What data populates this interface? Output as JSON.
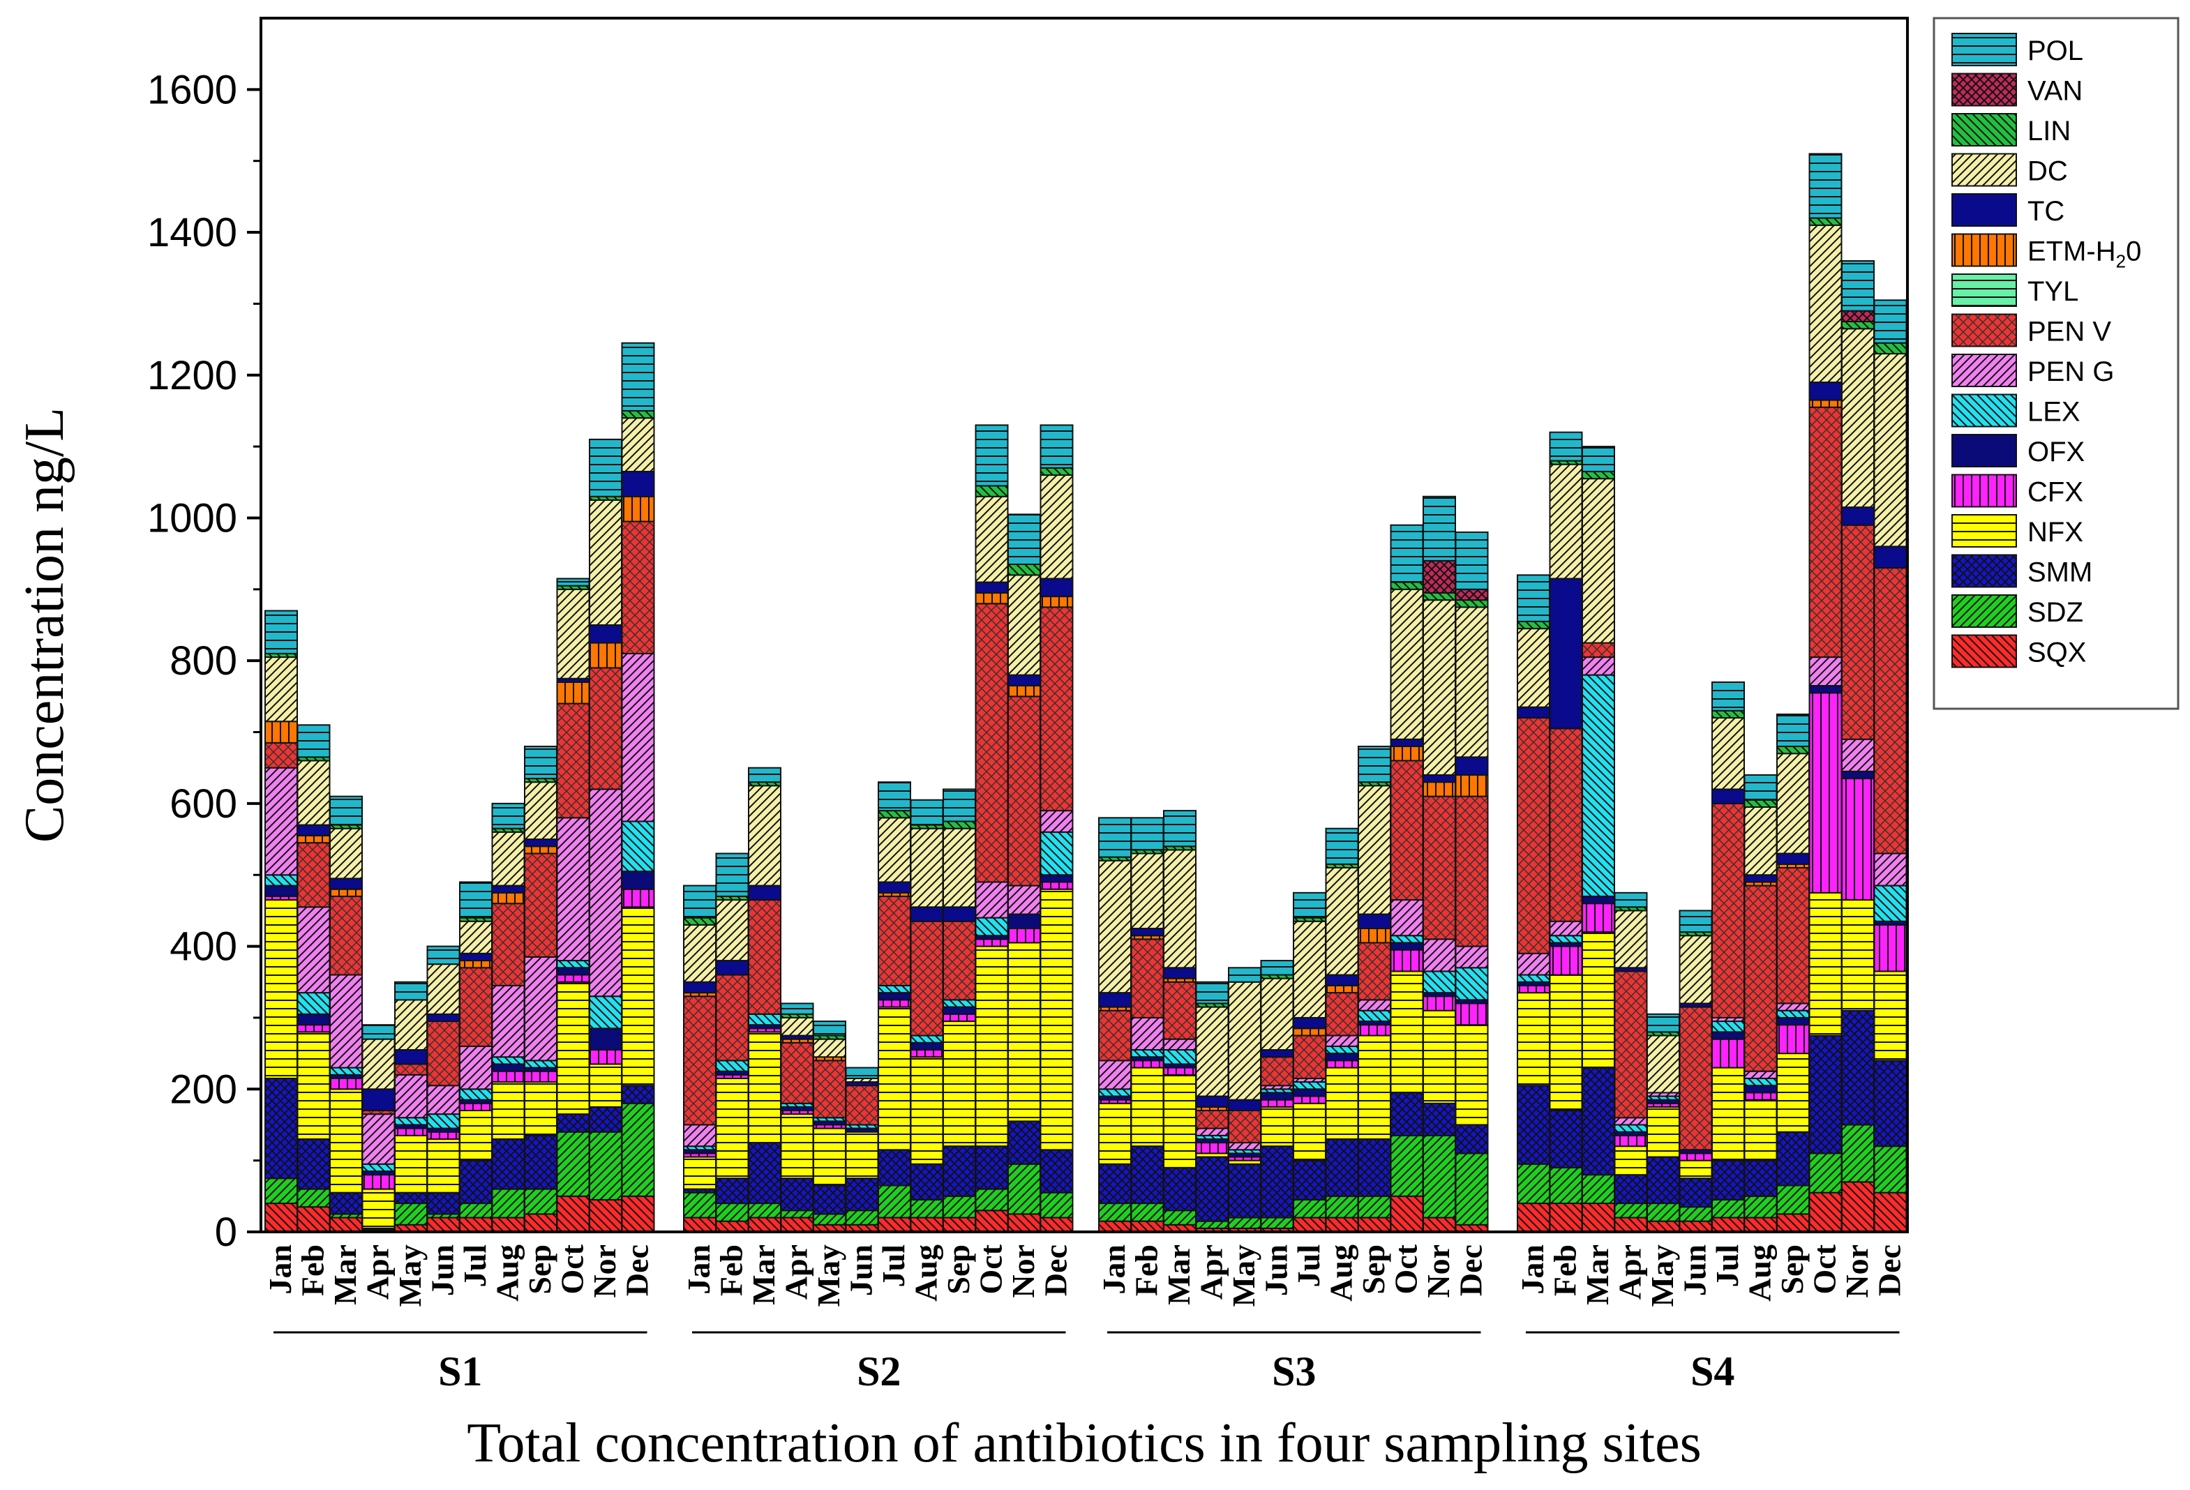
{
  "chart_data": {
    "type": "bar",
    "stacked": true,
    "title": "",
    "xlabel": "Total concentration of antibiotics in four sampling sites",
    "ylabel": "Concentration ng/L",
    "ylim": [
      0,
      1700
    ],
    "yticks": [
      0,
      200,
      400,
      600,
      800,
      1000,
      1200,
      1400,
      1600
    ],
    "months": [
      "Jan",
      "Feb",
      "Mar",
      "Apr",
      "May",
      "Jun",
      "Jul",
      "Aug",
      "Sep",
      "Oct",
      "Nor",
      "Dec"
    ],
    "sites": [
      "S1",
      "S2",
      "S3",
      "S4"
    ],
    "legend_position": "right-outside",
    "series": [
      {
        "name": "SQX",
        "color": "#ff2a2a",
        "pattern": "diag-left"
      },
      {
        "name": "SDZ",
        "color": "#1fcf1f",
        "pattern": "diag-right"
      },
      {
        "name": "SMM",
        "color": "#1414c8",
        "pattern": "cross"
      },
      {
        "name": "NFX",
        "color": "#ffff00",
        "pattern": "hlines"
      },
      {
        "name": "CFX",
        "color": "#ff22ff",
        "pattern": "vlines"
      },
      {
        "name": "OFX",
        "color": "#0a0a78",
        "pattern": "solid"
      },
      {
        "name": "LEX",
        "color": "#22e0f0",
        "pattern": "diag-left"
      },
      {
        "name": "PEN G",
        "color": "#f080f0",
        "pattern": "diag-right"
      },
      {
        "name": "PEN V",
        "color": "#ee3333",
        "pattern": "dots"
      },
      {
        "name": "TYL",
        "color": "#66f0a8",
        "pattern": "hlines"
      },
      {
        "name": "ETM-H20",
        "label_main": "ETM-H",
        "label_sub": "2",
        "label_tail": "0",
        "color": "#ff7700",
        "pattern": "vlines"
      },
      {
        "name": "TC",
        "color": "#0a0a8c",
        "pattern": "solid"
      },
      {
        "name": "DC",
        "color": "#f5f0a8",
        "pattern": "diag-right"
      },
      {
        "name": "LIN",
        "color": "#22c040",
        "pattern": "diag-left"
      },
      {
        "name": "VAN",
        "color": "#c02a5a",
        "pattern": "cross"
      },
      {
        "name": "POL",
        "color": "#22b8cc",
        "pattern": "hlines"
      }
    ],
    "data": {
      "S1": [
        [
          40,
          35,
          140,
          250,
          5,
          15,
          15,
          150,
          35,
          0,
          30,
          0,
          90,
          5,
          0,
          60
        ],
        [
          35,
          25,
          70,
          150,
          10,
          15,
          30,
          120,
          90,
          0,
          10,
          15,
          90,
          5,
          0,
          45
        ],
        [
          20,
          5,
          30,
          145,
          15,
          5,
          10,
          130,
          110,
          0,
          10,
          15,
          70,
          5,
          0,
          40
        ],
        [
          3,
          2,
          0,
          55,
          20,
          5,
          10,
          70,
          5,
          0,
          0,
          30,
          70,
          0,
          0,
          20
        ],
        [
          10,
          30,
          15,
          80,
          10,
          5,
          10,
          60,
          15,
          0,
          0,
          20,
          70,
          0,
          0,
          25
        ],
        [
          20,
          5,
          30,
          75,
          10,
          5,
          20,
          40,
          90,
          0,
          0,
          10,
          70,
          0,
          0,
          25
        ],
        [
          20,
          20,
          60,
          70,
          10,
          5,
          15,
          60,
          110,
          0,
          10,
          10,
          45,
          5,
          0,
          50
        ],
        [
          20,
          40,
          70,
          80,
          15,
          10,
          10,
          100,
          115,
          0,
          15,
          10,
          75,
          5,
          0,
          35
        ],
        [
          25,
          35,
          75,
          75,
          15,
          5,
          10,
          145,
          145,
          0,
          10,
          10,
          80,
          5,
          0,
          45
        ],
        [
          50,
          90,
          25,
          185,
          10,
          10,
          10,
          200,
          160,
          0,
          30,
          5,
          125,
          5,
          0,
          10
        ],
        [
          45,
          95,
          35,
          60,
          20,
          30,
          45,
          290,
          170,
          0,
          35,
          25,
          175,
          5,
          0,
          80
        ],
        [
          50,
          130,
          25,
          250,
          25,
          25,
          70,
          235,
          185,
          0,
          35,
          35,
          75,
          10,
          0,
          95
        ]
      ],
      "S2": [
        [
          20,
          35,
          5,
          45,
          5,
          5,
          5,
          30,
          180,
          0,
          5,
          15,
          80,
          10,
          0,
          45
        ],
        [
          15,
          25,
          35,
          140,
          5,
          5,
          15,
          0,
          120,
          0,
          0,
          20,
          85,
          5,
          0,
          60
        ],
        [
          20,
          20,
          85,
          155,
          5,
          5,
          15,
          0,
          160,
          0,
          0,
          20,
          140,
          5,
          0,
          20
        ],
        [
          20,
          10,
          45,
          90,
          5,
          5,
          5,
          0,
          85,
          0,
          5,
          5,
          25,
          5,
          0,
          15
        ],
        [
          10,
          15,
          40,
          80,
          5,
          5,
          5,
          0,
          80,
          0,
          5,
          0,
          25,
          5,
          0,
          20
        ],
        [
          10,
          20,
          45,
          65,
          0,
          5,
          5,
          0,
          55,
          0,
          0,
          5,
          5,
          0,
          0,
          15
        ],
        [
          20,
          45,
          50,
          200,
          10,
          10,
          10,
          0,
          125,
          0,
          5,
          15,
          90,
          10,
          0,
          40
        ],
        [
          20,
          25,
          50,
          150,
          10,
          10,
          10,
          0,
          160,
          0,
          0,
          20,
          110,
          5,
          0,
          35
        ],
        [
          20,
          30,
          70,
          175,
          10,
          10,
          10,
          0,
          110,
          0,
          0,
          20,
          110,
          10,
          0,
          45
        ],
        [
          30,
          30,
          60,
          280,
          10,
          5,
          25,
          50,
          390,
          0,
          15,
          15,
          120,
          15,
          0,
          85
        ],
        [
          25,
          70,
          60,
          250,
          20,
          20,
          0,
          40,
          265,
          0,
          15,
          15,
          140,
          15,
          0,
          70
        ],
        [
          20,
          35,
          60,
          365,
          10,
          10,
          60,
          30,
          285,
          0,
          15,
          25,
          145,
          10,
          0,
          60
        ]
      ],
      "S3": [
        [
          15,
          25,
          55,
          85,
          5,
          5,
          10,
          40,
          70,
          0,
          5,
          20,
          185,
          5,
          0,
          55
        ],
        [
          15,
          25,
          80,
          110,
          10,
          5,
          10,
          45,
          110,
          0,
          5,
          10,
          105,
          5,
          0,
          45
        ],
        [
          10,
          20,
          60,
          130,
          10,
          5,
          20,
          15,
          80,
          0,
          5,
          15,
          165,
          5,
          0,
          50
        ],
        [
          5,
          10,
          90,
          5,
          15,
          5,
          5,
          10,
          25,
          0,
          5,
          15,
          125,
          5,
          0,
          30
        ],
        [
          5,
          15,
          75,
          5,
          5,
          5,
          5,
          10,
          45,
          0,
          0,
          15,
          165,
          0,
          0,
          20
        ],
        [
          5,
          15,
          100,
          55,
          10,
          10,
          5,
          5,
          40,
          0,
          0,
          10,
          100,
          5,
          0,
          20
        ],
        [
          20,
          25,
          55,
          80,
          10,
          10,
          10,
          5,
          60,
          0,
          10,
          15,
          135,
          5,
          0,
          35
        ],
        [
          20,
          30,
          80,
          100,
          10,
          10,
          10,
          15,
          60,
          0,
          10,
          15,
          150,
          5,
          0,
          50
        ],
        [
          20,
          30,
          80,
          145,
          15,
          5,
          15,
          15,
          80,
          0,
          20,
          20,
          180,
          5,
          0,
          50
        ],
        [
          50,
          85,
          60,
          170,
          30,
          10,
          10,
          50,
          195,
          0,
          20,
          10,
          210,
          10,
          0,
          80
        ],
        [
          20,
          115,
          45,
          130,
          20,
          5,
          30,
          45,
          200,
          0,
          20,
          10,
          245,
          10,
          45,
          90
        ],
        [
          10,
          100,
          40,
          140,
          30,
          5,
          45,
          30,
          210,
          0,
          30,
          25,
          210,
          10,
          15,
          80
        ]
      ],
      "S4": [
        [
          40,
          55,
          110,
          130,
          10,
          5,
          10,
          30,
          330,
          0,
          0,
          15,
          110,
          10,
          0,
          65
        ],
        [
          40,
          50,
          80,
          190,
          40,
          5,
          10,
          20,
          270,
          0,
          0,
          210,
          160,
          5,
          0,
          40
        ],
        [
          40,
          40,
          150,
          190,
          40,
          10,
          310,
          25,
          20,
          0,
          0,
          0,
          230,
          10,
          0,
          35
        ],
        [
          20,
          20,
          40,
          40,
          15,
          5,
          10,
          10,
          205,
          0,
          0,
          5,
          80,
          5,
          0,
          20
        ],
        [
          15,
          25,
          65,
          70,
          5,
          5,
          5,
          5,
          0,
          0,
          0,
          0,
          80,
          5,
          0,
          25
        ],
        [
          15,
          20,
          40,
          25,
          10,
          5,
          0,
          0,
          200,
          0,
          0,
          5,
          95,
          5,
          0,
          30
        ],
        [
          20,
          25,
          55,
          130,
          40,
          10,
          15,
          5,
          300,
          0,
          0,
          20,
          100,
          10,
          0,
          40
        ],
        [
          20,
          30,
          50,
          85,
          10,
          10,
          10,
          10,
          260,
          0,
          5,
          10,
          95,
          10,
          0,
          35
        ],
        [
          25,
          40,
          75,
          110,
          40,
          10,
          10,
          10,
          190,
          0,
          5,
          15,
          140,
          10,
          0,
          45
        ],
        [
          55,
          55,
          165,
          200,
          280,
          10,
          0,
          40,
          350,
          0,
          10,
          25,
          220,
          10,
          0,
          90
        ],
        [
          70,
          80,
          160,
          155,
          170,
          10,
          0,
          45,
          300,
          0,
          0,
          25,
          250,
          10,
          15,
          70
        ],
        [
          55,
          65,
          120,
          125,
          65,
          5,
          50,
          45,
          400,
          0,
          0,
          30,
          270,
          15,
          0,
          60
        ]
      ]
    }
  }
}
